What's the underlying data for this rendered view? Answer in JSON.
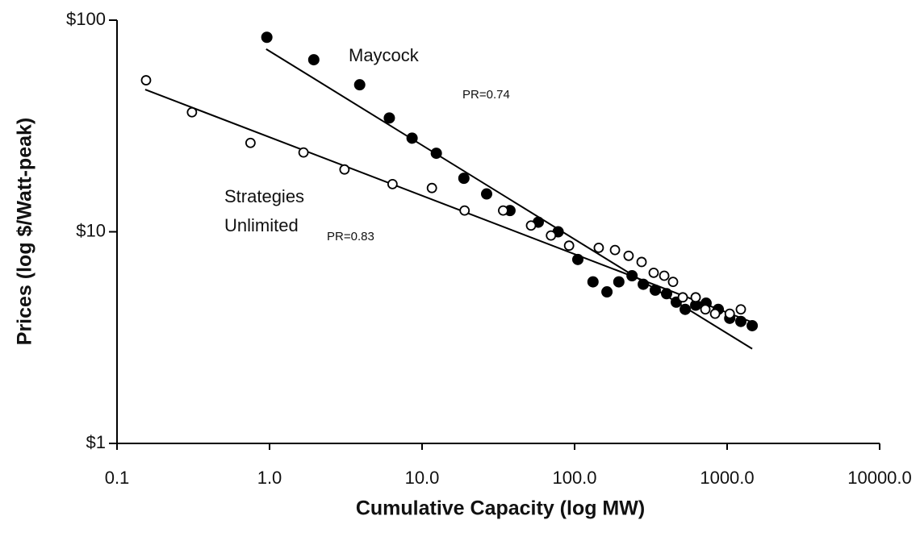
{
  "chart_data": {
    "type": "scatter",
    "xlabel": "Cumulative Capacity (log MW)",
    "ylabel": "Prices (log $/Watt-peak)",
    "xscale": "log",
    "yscale": "log",
    "xlim": [
      0.1,
      10000
    ],
    "ylim": [
      1,
      100
    ],
    "xticks": [
      0.1,
      {
        "value": 1,
        "label": "1.0"
      },
      {
        "value": 10,
        "label": "10.0"
      },
      {
        "value": 100,
        "label": "100.0"
      },
      {
        "value": 1000,
        "label": "1000.0"
      },
      {
        "value": 10000,
        "label": "10000.0"
      }
    ],
    "yticks": [
      {
        "value": 1,
        "label": "$1"
      },
      {
        "value": 10,
        "label": "$10"
      },
      {
        "value": 100,
        "label": "$100"
      }
    ],
    "annotations": [
      "PR=0.74",
      "PR=0.83"
    ],
    "series": [
      {
        "name": "Maycock",
        "color": "#000000",
        "marker": "filled",
        "x": [
          0.96,
          1.95,
          3.9,
          6.1,
          8.6,
          12.4,
          18.8,
          26.5,
          37.7,
          57.8,
          78,
          105,
          132,
          163,
          195,
          238,
          282,
          338,
          401,
          464,
          531,
          622,
          728,
          875,
          1040,
          1230,
          1460
        ],
        "values": [
          83,
          65,
          49.5,
          34.5,
          27.7,
          23.5,
          17.9,
          15.1,
          12.6,
          11.1,
          10,
          7.4,
          5.8,
          5.2,
          5.8,
          6.2,
          5.65,
          5.3,
          5.1,
          4.65,
          4.3,
          4.5,
          4.6,
          4.3,
          3.9,
          3.77,
          3.6
        ],
        "fit": {
          "x": [
            0.95,
            1460
          ],
          "values": [
            73,
            2.8
          ]
        }
      },
      {
        "name": "Strategies Unlimited",
        "color": "#000000",
        "marker": "open",
        "x": [
          0.155,
          0.31,
          0.75,
          1.67,
          3.1,
          6.4,
          11.6,
          19,
          34,
          51.8,
          70,
          92,
          144,
          184,
          226,
          275,
          330,
          387,
          442,
          512,
          622,
          720,
          834,
          1040,
          1230
        ],
        "values": [
          52,
          36.7,
          26.3,
          23.7,
          19.7,
          16.8,
          16.1,
          12.6,
          12.6,
          10.7,
          9.6,
          8.6,
          8.4,
          8.2,
          7.7,
          7.2,
          6.4,
          6.2,
          5.8,
          4.9,
          4.9,
          4.3,
          4.1,
          4.1,
          4.3
        ],
        "fit": {
          "x": [
            0.153,
            1460
          ],
          "values": [
            47,
            3.74
          ]
        }
      }
    ]
  }
}
